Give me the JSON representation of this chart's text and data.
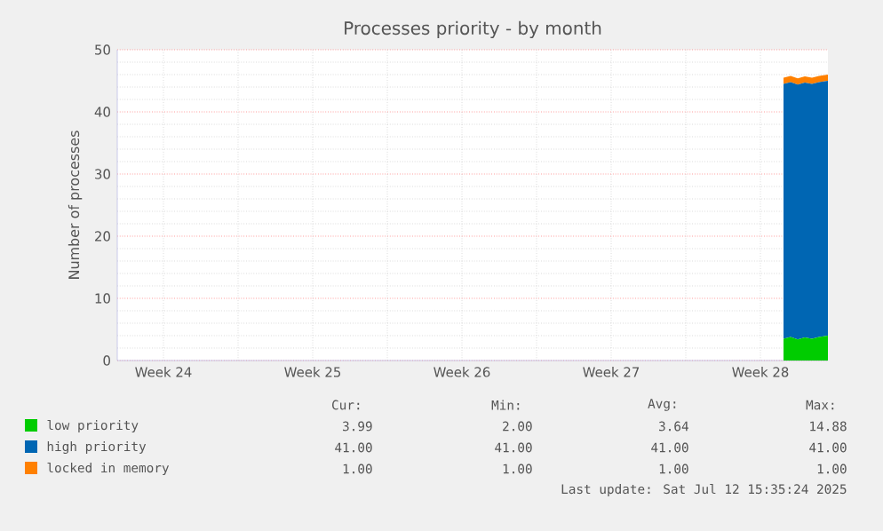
{
  "chart_data": {
    "type": "area",
    "stacked": true,
    "title": "Processes priority - by month",
    "ylabel": "Number of processes",
    "xlim": [
      "2025-06-10T08:00",
      "2025-07-13T16:00"
    ],
    "ylim": [
      0,
      50
    ],
    "yticks": [
      0,
      10,
      20,
      30,
      40,
      50
    ],
    "xticks": [
      {
        "value": "2025-06-12T12:00",
        "label": "Week 24"
      },
      {
        "value": "2025-06-16",
        "label": null
      },
      {
        "value": "2025-06-19T12:00",
        "label": "Week 25"
      },
      {
        "value": "2025-06-23",
        "label": null
      },
      {
        "value": "2025-06-26T12:00",
        "label": "Week 26"
      },
      {
        "value": "2025-06-30",
        "label": null
      },
      {
        "value": "2025-07-03T12:00",
        "label": "Week 27"
      },
      {
        "value": "2025-07-07",
        "label": null
      },
      {
        "value": "2025-07-10T12:00",
        "label": "Week 28"
      }
    ],
    "x": [
      "2025-07-11T14:00",
      "2025-07-11T22:00",
      "2025-07-12T06:00",
      "2025-07-12T14:00",
      "2025-07-12T22:00",
      "2025-07-13T06:00",
      "2025-07-13T16:00"
    ],
    "grid": true,
    "legend": "bottom",
    "series": [
      {
        "name": "low priority",
        "color": "#00cc00",
        "values": [
          3.5,
          3.8,
          3.4,
          3.7,
          3.5,
          3.8,
          4.0
        ]
      },
      {
        "name": "high priority",
        "color": "#0066b3",
        "values": [
          41,
          41,
          41,
          41,
          41,
          41,
          41
        ]
      },
      {
        "name": "locked in memory",
        "color": "#ff8000",
        "values": [
          1,
          1,
          1,
          1,
          1,
          1,
          1
        ]
      }
    ],
    "annotations": [
      "Cur:",
      "Min:",
      "Avg:",
      "Max:",
      "3.99",
      "2.00",
      "3.64",
      "14.88",
      "41.00",
      "41.00",
      "41.00",
      "41.00",
      "1.00",
      "1.00",
      "1.00",
      "1.00",
      "Last update: Sat Jul 12 15:35:24 2025"
    ]
  }
}
